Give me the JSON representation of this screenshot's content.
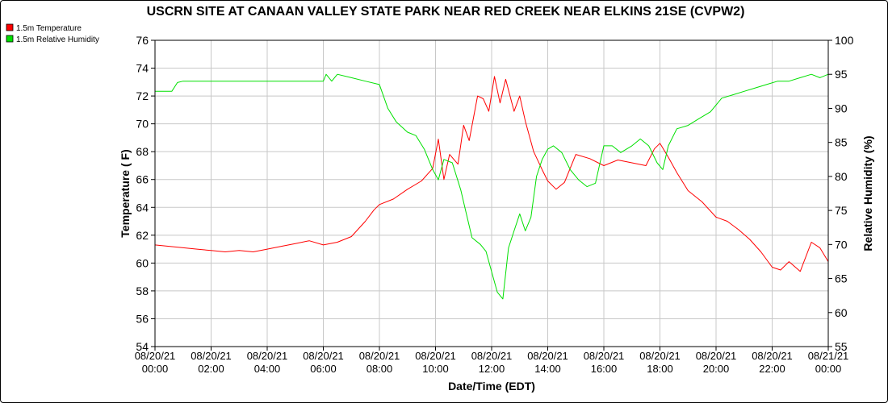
{
  "chart_data": {
    "type": "line",
    "title": "USCRN SITE AT CANAAN VALLEY STATE PARK NEAR RED CREEK NEAR ELKINS 21SE (CVPW2)",
    "xlabel": "Date/Time (EDT)",
    "ylabel": "Temperature ( F)",
    "y2label": "Relative Humidity (%)",
    "x_range_hours": [
      0,
      24
    ],
    "ylim": [
      54,
      76
    ],
    "y2lim": [
      55,
      100
    ],
    "y_ticks": [
      "54",
      "56",
      "58",
      "60",
      "62",
      "64",
      "66",
      "68",
      "70",
      "72",
      "74",
      "76"
    ],
    "y2_ticks": [
      "55",
      "60",
      "65",
      "70",
      "75",
      "80",
      "85",
      "90",
      "95",
      "100"
    ],
    "x_ticks": [
      {
        "date": "08/20/21",
        "time": "00:00"
      },
      {
        "date": "08/20/21",
        "time": "02:00"
      },
      {
        "date": "08/20/21",
        "time": "04:00"
      },
      {
        "date": "08/20/21",
        "time": "06:00"
      },
      {
        "date": "08/20/21",
        "time": "08:00"
      },
      {
        "date": "08/20/21",
        "time": "10:00"
      },
      {
        "date": "08/20/21",
        "time": "12:00"
      },
      {
        "date": "08/20/21",
        "time": "14:00"
      },
      {
        "date": "08/20/21",
        "time": "16:00"
      },
      {
        "date": "08/20/21",
        "time": "18:00"
      },
      {
        "date": "08/20/21",
        "time": "20:00"
      },
      {
        "date": "08/20/21",
        "time": "22:00"
      },
      {
        "date": "08/21/21",
        "time": "00:00"
      }
    ],
    "grid": true,
    "legend_position": "top-left",
    "series": [
      {
        "name": "1.5m Temperature",
        "color": "#ff0000",
        "axis": "left",
        "x": [
          0,
          0.5,
          1,
          1.5,
          2,
          2.5,
          3,
          3.5,
          4,
          4.5,
          5,
          5.5,
          6,
          6.5,
          7,
          7.5,
          7.8,
          8,
          8.5,
          9,
          9.5,
          9.9,
          10.1,
          10.3,
          10.5,
          10.8,
          11,
          11.2,
          11.5,
          11.7,
          11.9,
          12.1,
          12.3,
          12.5,
          12.8,
          13,
          13.2,
          13.5,
          13.8,
          14,
          14.3,
          14.6,
          15,
          15.5,
          16,
          16.5,
          17,
          17.5,
          17.8,
          18,
          18.3,
          18.6,
          19,
          19.5,
          20,
          20.4,
          20.8,
          21.2,
          21.6,
          22,
          22.3,
          22.6,
          23,
          23.4,
          23.7,
          24
        ],
        "values": [
          61.3,
          61.2,
          61.1,
          61.0,
          60.9,
          60.8,
          60.9,
          60.8,
          61.0,
          61.2,
          61.4,
          61.6,
          61.3,
          61.5,
          61.9,
          63.0,
          63.8,
          64.2,
          64.6,
          65.3,
          65.9,
          66.8,
          68.9,
          66.0,
          67.8,
          67.1,
          69.9,
          68.8,
          72.0,
          71.8,
          70.9,
          73.4,
          71.5,
          73.2,
          70.9,
          72.0,
          70.2,
          68.0,
          66.7,
          65.9,
          65.3,
          65.8,
          67.8,
          67.5,
          67.0,
          67.4,
          67.2,
          67.0,
          68.2,
          68.6,
          67.6,
          66.5,
          65.2,
          64.4,
          63.3,
          63.0,
          62.4,
          61.7,
          60.8,
          59.7,
          59.5,
          60.1,
          59.4,
          61.5,
          61.1,
          60.1
        ]
      },
      {
        "name": "1.5m Relative Humidity",
        "color": "#00e000",
        "axis": "right",
        "x": [
          0,
          0.6,
          0.8,
          1,
          2,
          3,
          4,
          5,
          6,
          6.1,
          6.3,
          6.5,
          7,
          7.5,
          8,
          8.3,
          8.6,
          9,
          9.3,
          9.6,
          9.9,
          10.1,
          10.3,
          10.6,
          10.9,
          11.1,
          11.3,
          11.6,
          11.8,
          12,
          12.2,
          12.4,
          12.6,
          12.8,
          13,
          13.2,
          13.4,
          13.6,
          13.8,
          14,
          14.2,
          14.5,
          14.8,
          15.1,
          15.4,
          15.7,
          16,
          16.3,
          16.6,
          17,
          17.3,
          17.6,
          17.9,
          18.1,
          18.3,
          18.6,
          19,
          19.4,
          19.8,
          20.2,
          20.6,
          21,
          21.4,
          21.8,
          22.2,
          22.6,
          23,
          23.4,
          23.7,
          24
        ],
        "values": [
          92.5,
          92.5,
          93.8,
          94.0,
          94.0,
          94.0,
          94.0,
          94.0,
          94.0,
          95.0,
          94.0,
          95.0,
          94.5,
          94.0,
          93.5,
          90.0,
          88.0,
          86.5,
          86.0,
          84.0,
          81.0,
          79.5,
          82.5,
          82.0,
          78.0,
          74.5,
          71.0,
          70.0,
          69.0,
          66.0,
          63.0,
          62.0,
          69.5,
          72.0,
          74.5,
          72.0,
          74.0,
          80.0,
          82.5,
          84.0,
          84.5,
          83.5,
          81.0,
          79.5,
          78.5,
          79.0,
          84.5,
          84.5,
          83.5,
          84.5,
          85.5,
          84.5,
          82.0,
          81.0,
          84.5,
          87.0,
          87.5,
          88.5,
          89.5,
          91.5,
          92.0,
          92.5,
          93.0,
          93.5,
          94.0,
          94.0,
          94.5,
          95.0,
          94.5,
          95.0
        ]
      }
    ]
  }
}
